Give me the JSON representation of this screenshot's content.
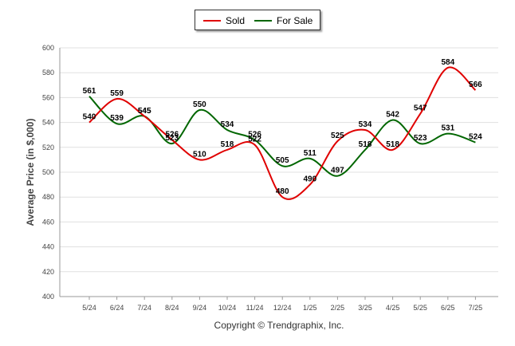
{
  "chart_data": {
    "type": "line",
    "title": "",
    "xlabel": "",
    "ylabel": "Average Price (in $,000)",
    "ylim": [
      400,
      600
    ],
    "yticks": [
      400,
      420,
      440,
      460,
      480,
      500,
      520,
      540,
      560,
      580,
      600
    ],
    "categories": [
      "5/24",
      "6/24",
      "7/24",
      "8/24",
      "9/24",
      "10/24",
      "11/24",
      "12/24",
      "1/25",
      "2/25",
      "3/25",
      "4/25",
      "5/25",
      "6/25",
      "7/25"
    ],
    "grid": true,
    "legend_position": "top-center",
    "series": [
      {
        "name": "Sold",
        "color": "#e00000",
        "values": [
          540,
          559,
          545,
          526,
          510,
          518,
          522,
          480,
          490,
          525,
          534,
          518,
          547,
          584,
          566
        ]
      },
      {
        "name": "For Sale",
        "color": "#006600",
        "values": [
          561,
          539,
          545,
          523,
          550,
          534,
          526,
          505,
          511,
          497,
          518,
          542,
          523,
          531,
          524
        ]
      }
    ]
  },
  "legend": {
    "sold": "Sold",
    "for_sale": "For Sale"
  },
  "footer": {
    "copyright": "Copyright © Trendgraphix, Inc."
  }
}
